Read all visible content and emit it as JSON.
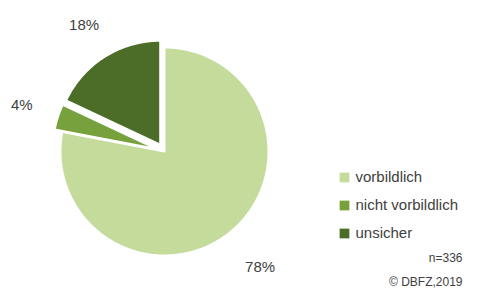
{
  "chart_data": {
    "type": "pie",
    "categories": [
      "vorbildlich",
      "nicht vorbildlich",
      "unsicher"
    ],
    "values": [
      78,
      4,
      18
    ],
    "value_labels": [
      "78%",
      "4%",
      "18%"
    ],
    "colors": [
      "#c4db9c",
      "#76a13c",
      "#4b6d28"
    ],
    "data_labels": true,
    "legend": "right",
    "annotations": [
      "n=336",
      "© DBFZ,2019"
    ]
  }
}
